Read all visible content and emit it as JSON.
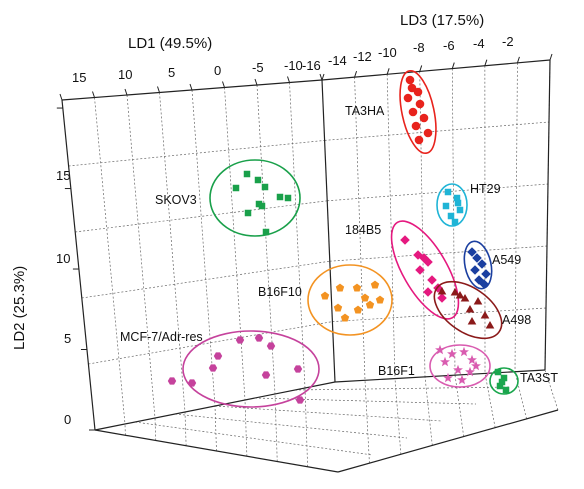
{
  "chart_data": {
    "type": "scatter",
    "axes": {
      "x": {
        "label": "LD1 (49.5%)",
        "ticks": [
          "15",
          "10",
          "5",
          "0",
          "-5",
          "-10"
        ]
      },
      "z": {
        "label": "LD3 (17.5%)",
        "ticks": [
          "-16",
          "-14",
          "-12",
          "-10",
          "-8",
          "-6",
          "-4",
          "-2"
        ]
      },
      "y": {
        "label": "LD2 (25.3%)",
        "ticks": [
          "0",
          "5",
          "10",
          "15"
        ]
      }
    },
    "grid": true,
    "clusters": [
      {
        "name": "TA3HA",
        "color": "#e8231d",
        "marker": "circle"
      },
      {
        "name": "SKOV3",
        "color": "#19a04a",
        "marker": "square"
      },
      {
        "name": "HT29",
        "color": "#1fb4d6",
        "marker": "square"
      },
      {
        "name": "184B5",
        "color": "#e5197f",
        "marker": "diamond"
      },
      {
        "name": "A549",
        "color": "#1b3fa0",
        "marker": "diamond"
      },
      {
        "name": "B16F10",
        "color": "#f39322",
        "marker": "pentagon"
      },
      {
        "name": "A498",
        "color": "#8b1a1a",
        "marker": "triangle"
      },
      {
        "name": "MCF-7/Adr-res",
        "color": "#c5429c",
        "marker": "hexagon"
      },
      {
        "name": "B16F1",
        "color": "#d95cb0",
        "marker": "star"
      },
      {
        "name": "TA3ST",
        "color": "#1aa64d",
        "marker": "square"
      }
    ]
  }
}
